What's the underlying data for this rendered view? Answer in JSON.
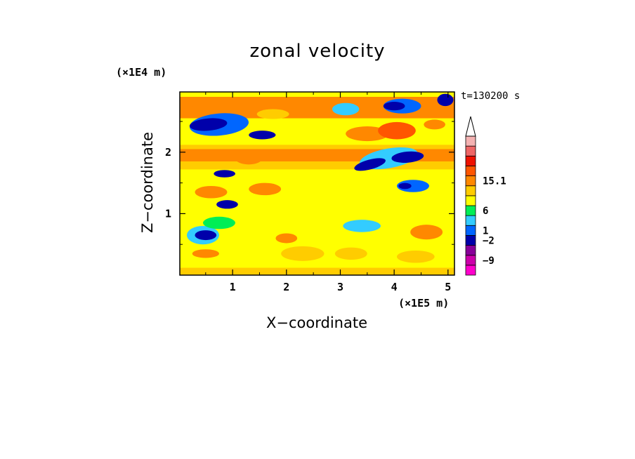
{
  "chart_data": {
    "type": "heatmap",
    "title": "zonal velocity",
    "xlabel": "X−coordinate",
    "ylabel": "Z−coordinate",
    "x_multiplier": "(×1E5 m)",
    "y_multiplier": "(×1E4 m)",
    "time_label": "t=130200 s",
    "xlim": [
      0.02,
      5.12
    ],
    "ylim": [
      0.0,
      2.98
    ],
    "x_ticks": [
      1,
      2,
      3,
      4,
      5
    ],
    "y_ticks": [
      1,
      2
    ],
    "colorbar": {
      "labels": [
        {
          "value": "15.1",
          "level": 9.5
        },
        {
          "value": "6",
          "level": 6.5
        },
        {
          "value": "1",
          "level": 4.5
        },
        {
          "value": "−2",
          "level": 3.5
        },
        {
          "value": "−9",
          "level": 1.5
        }
      ],
      "colors": [
        "#ff00cc",
        "#cc00aa",
        "#880099",
        "#0000aa",
        "#0066ff",
        "#33ccff",
        "#00ee55",
        "#ffff00",
        "#ffcc00",
        "#ff8800",
        "#ff5500",
        "#ee1100",
        "#ee6666",
        "#f4b2b2"
      ],
      "extend_top": true
    },
    "field": {
      "background_level": 7,
      "bands": [
        {
          "level": 8,
          "z": [
            0.0,
            0.12
          ]
        },
        {
          "level": 9,
          "z": [
            2.55,
            2.9
          ]
        },
        {
          "level": 7,
          "z": [
            2.25,
            2.55
          ]
        },
        {
          "level": 8,
          "z": [
            1.72,
            2.12
          ]
        },
        {
          "level": 9,
          "z": [
            1.85,
            2.05
          ]
        },
        {
          "level": 7,
          "z": [
            0.95,
            1.35
          ]
        }
      ],
      "blobs": [
        {
          "x": 0.75,
          "z": 2.45,
          "rx": 0.55,
          "rz": 0.18,
          "level": 4,
          "angle": -5
        },
        {
          "x": 0.55,
          "z": 2.45,
          "rx": 0.35,
          "rz": 0.1,
          "level": 3,
          "angle": -5
        },
        {
          "x": 1.55,
          "z": 2.28,
          "rx": 0.25,
          "rz": 0.07,
          "level": 3,
          "angle": 0
        },
        {
          "x": 1.75,
          "z": 2.62,
          "rx": 0.3,
          "rz": 0.08,
          "level": 8,
          "angle": 0
        },
        {
          "x": 0.6,
          "z": 2.8,
          "rx": 0.4,
          "rz": 0.1,
          "level": 9,
          "angle": 0
        },
        {
          "x": 4.15,
          "z": 2.75,
          "rx": 0.35,
          "rz": 0.12,
          "level": 4,
          "angle": 0
        },
        {
          "x": 4.0,
          "z": 2.75,
          "rx": 0.2,
          "rz": 0.07,
          "level": 3,
          "angle": 0
        },
        {
          "x": 4.95,
          "z": 2.85,
          "rx": 0.15,
          "rz": 0.1,
          "level": 3,
          "angle": 0
        },
        {
          "x": 3.1,
          "z": 2.7,
          "rx": 0.25,
          "rz": 0.1,
          "level": 5,
          "angle": 0
        },
        {
          "x": 3.5,
          "z": 2.3,
          "rx": 0.4,
          "rz": 0.12,
          "level": 9,
          "angle": 0
        },
        {
          "x": 4.05,
          "z": 2.35,
          "rx": 0.35,
          "rz": 0.14,
          "level": 10,
          "angle": 0
        },
        {
          "x": 4.75,
          "z": 2.45,
          "rx": 0.2,
          "rz": 0.08,
          "level": 9,
          "angle": 0
        },
        {
          "x": 3.9,
          "z": 1.9,
          "rx": 0.55,
          "rz": 0.16,
          "level": 5,
          "angle": -10
        },
        {
          "x": 3.55,
          "z": 1.8,
          "rx": 0.3,
          "rz": 0.08,
          "level": 3,
          "angle": -15
        },
        {
          "x": 4.25,
          "z": 1.92,
          "rx": 0.3,
          "rz": 0.09,
          "level": 3,
          "angle": -5
        },
        {
          "x": 4.35,
          "z": 1.45,
          "rx": 0.3,
          "rz": 0.1,
          "level": 4,
          "angle": 0
        },
        {
          "x": 4.2,
          "z": 1.45,
          "rx": 0.12,
          "rz": 0.05,
          "level": 3,
          "angle": 0
        },
        {
          "x": 0.85,
          "z": 1.65,
          "rx": 0.2,
          "rz": 0.06,
          "level": 3,
          "angle": 0
        },
        {
          "x": 0.6,
          "z": 1.35,
          "rx": 0.3,
          "rz": 0.1,
          "level": 9,
          "angle": 0
        },
        {
          "x": 1.3,
          "z": 1.9,
          "rx": 0.25,
          "rz": 0.1,
          "level": 9,
          "angle": 0
        },
        {
          "x": 1.6,
          "z": 1.4,
          "rx": 0.3,
          "rz": 0.1,
          "level": 9,
          "angle": 0
        },
        {
          "x": 0.9,
          "z": 1.15,
          "rx": 0.2,
          "rz": 0.07,
          "level": 3,
          "angle": 0
        },
        {
          "x": 0.45,
          "z": 0.65,
          "rx": 0.3,
          "rz": 0.15,
          "level": 5,
          "angle": 0
        },
        {
          "x": 0.5,
          "z": 0.65,
          "rx": 0.2,
          "rz": 0.08,
          "level": 3,
          "angle": 0
        },
        {
          "x": 0.5,
          "z": 0.35,
          "rx": 0.25,
          "rz": 0.07,
          "level": 9,
          "angle": 0
        },
        {
          "x": 2.3,
          "z": 0.35,
          "rx": 0.4,
          "rz": 0.12,
          "level": 8,
          "angle": 0
        },
        {
          "x": 3.2,
          "z": 0.35,
          "rx": 0.3,
          "rz": 0.1,
          "level": 8,
          "angle": 0
        },
        {
          "x": 4.4,
          "z": 0.3,
          "rx": 0.35,
          "rz": 0.1,
          "level": 8,
          "angle": 0
        },
        {
          "x": 3.4,
          "z": 0.8,
          "rx": 0.35,
          "rz": 0.1,
          "level": 5,
          "angle": 0
        },
        {
          "x": 4.6,
          "z": 0.7,
          "rx": 0.3,
          "rz": 0.12,
          "level": 9,
          "angle": 0
        },
        {
          "x": 2.0,
          "z": 0.6,
          "rx": 0.2,
          "rz": 0.08,
          "level": 9,
          "angle": 0
        },
        {
          "x": 0.75,
          "z": 0.85,
          "rx": 0.3,
          "rz": 0.1,
          "level": 6,
          "angle": 0
        }
      ]
    }
  }
}
